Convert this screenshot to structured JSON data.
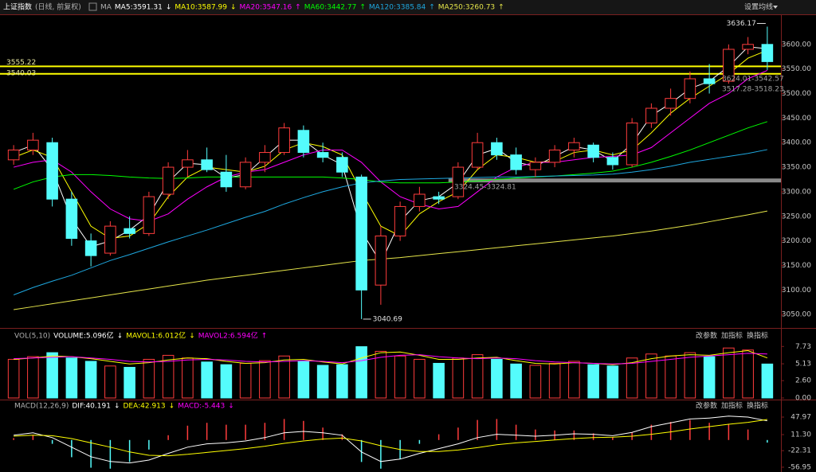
{
  "header": {
    "symbol": "上证指数",
    "period": "(日线, 前复权)",
    "ma": "MA",
    "settings": "设置均线",
    "buttons": [
      "改参数",
      "加指标",
      "换指标"
    ]
  },
  "chart_data": [
    {
      "type": "candlestick",
      "open": [
        3365,
        3385,
        3400,
        3285,
        3200,
        3175,
        3225,
        3215,
        3295,
        3350,
        3365,
        3340,
        3310,
        3360,
        3380,
        3425,
        3380,
        3370,
        3330,
        3110,
        3210,
        3270,
        3290,
        3290,
        3350,
        3400,
        3375,
        3345,
        3360,
        3385,
        3395,
        3370,
        3355,
        3440,
        3470,
        3490,
        3530,
        3525,
        3590,
        3600
      ],
      "high": [
        3395,
        3420,
        3410,
        3300,
        3215,
        3240,
        3250,
        3300,
        3360,
        3385,
        3390,
        3375,
        3370,
        3395,
        3440,
        3435,
        3400,
        3380,
        3335,
        3230,
        3280,
        3310,
        3300,
        3360,
        3420,
        3410,
        3390,
        3370,
        3395,
        3410,
        3400,
        3380,
        3450,
        3480,
        3510,
        3545,
        3560,
        3600,
        3615,
        3636.17
      ],
      "low": [
        3355,
        3375,
        3270,
        3190,
        3148,
        3170,
        3205,
        3210,
        3285,
        3330,
        3340,
        3300,
        3305,
        3340,
        3375,
        3370,
        3360,
        3330,
        3040.69,
        3070,
        3200,
        3260,
        3275,
        3285,
        3345,
        3365,
        3335,
        3330,
        3350,
        3370,
        3360,
        3345,
        3350,
        3430,
        3455,
        3480,
        3500,
        3520,
        3580,
        3548
      ],
      "close": [
        3385,
        3405,
        3285,
        3205,
        3170,
        3230,
        3215,
        3290,
        3350,
        3365,
        3345,
        3310,
        3360,
        3380,
        3430,
        3380,
        3370,
        3340,
        3100,
        3210,
        3270,
        3295,
        3285,
        3350,
        3400,
        3375,
        3345,
        3360,
        3385,
        3400,
        3370,
        3355,
        3440,
        3470,
        3490,
        3530,
        3520,
        3590,
        3600,
        3565
      ],
      "up_color": "#ff3c3c",
      "down_color": "#54fcfc",
      "ylim": [
        3026,
        3658
      ],
      "yticks": [
        {
          "value": 3050,
          "label": "3050.00"
        },
        {
          "value": 3100,
          "label": "3100.00"
        },
        {
          "value": 3150,
          "label": "3150.00"
        },
        {
          "value": 3200,
          "label": "3200.00"
        },
        {
          "value": 3250,
          "label": "3250.00"
        },
        {
          "value": 3300,
          "label": "3300.00"
        },
        {
          "value": 3350,
          "label": "3350.00"
        },
        {
          "value": 3400,
          "label": "3400.00"
        },
        {
          "value": 3450,
          "label": "3450.00"
        },
        {
          "value": 3500,
          "label": "3500.00"
        },
        {
          "value": 3550,
          "label": "3550.00"
        },
        {
          "value": 3600,
          "label": "3600.00"
        }
      ],
      "series": [
        {
          "label": "MA5:3591.31",
          "arrow": "↓",
          "color": "#ffffff",
          "values": [
            3380,
            3395,
            3345,
            3245,
            3188,
            3200,
            3222,
            3252,
            3320,
            3358,
            3355,
            3328,
            3335,
            3370,
            3405,
            3405,
            3375,
            3355,
            3220,
            3155,
            3240,
            3282,
            3290,
            3318,
            3375,
            3388,
            3360,
            3352,
            3372,
            3392,
            3385,
            3362,
            3398,
            3455,
            3480,
            3510,
            3525,
            3555,
            3595,
            3591.31
          ]
        },
        {
          "label": "MA10:3587.99",
          "arrow": "↓",
          "color": "#ffff00",
          "values": [
            3370,
            3385,
            3370,
            3300,
            3230,
            3205,
            3210,
            3235,
            3290,
            3330,
            3350,
            3345,
            3340,
            3352,
            3385,
            3400,
            3392,
            3375,
            3300,
            3230,
            3210,
            3255,
            3280,
            3300,
            3345,
            3375,
            3370,
            3360,
            3362,
            3380,
            3385,
            3375,
            3385,
            3420,
            3460,
            3490,
            3515,
            3540,
            3572,
            3587.99
          ]
        },
        {
          "label": "MA20:3547.16",
          "arrow": "↑",
          "color": "#ff00ff",
          "values": [
            3350,
            3360,
            3365,
            3340,
            3300,
            3265,
            3245,
            3240,
            3255,
            3285,
            3310,
            3330,
            3340,
            3345,
            3360,
            3375,
            3385,
            3385,
            3360,
            3320,
            3290,
            3275,
            3265,
            3270,
            3300,
            3330,
            3350,
            3360,
            3360,
            3365,
            3370,
            3372,
            3375,
            3390,
            3420,
            3450,
            3480,
            3500,
            3530,
            3547.16
          ]
        },
        {
          "label": "MA60:3442.77",
          "arrow": "↑",
          "color": "#00ff00",
          "values": [
            3305,
            3320,
            3330,
            3335,
            3335,
            3333,
            3330,
            3328,
            3327,
            3328,
            3330,
            3330,
            3330,
            3330,
            3330,
            3330,
            3330,
            3328,
            3325,
            3320,
            3318,
            3318,
            3318,
            3320,
            3322,
            3325,
            3328,
            3330,
            3332,
            3335,
            3338,
            3342,
            3350,
            3360,
            3372,
            3385,
            3400,
            3415,
            3430,
            3442.77
          ]
        },
        {
          "label": "MA120:3385.84",
          "arrow": "↑",
          "color": "#1ea8e0",
          "values": [
            3090,
            3105,
            3118,
            3130,
            3145,
            3160,
            3172,
            3185,
            3198,
            3210,
            3222,
            3235,
            3248,
            3260,
            3275,
            3288,
            3300,
            3310,
            3318,
            3322,
            3325,
            3326,
            3327,
            3328,
            3329,
            3330,
            3330,
            3331,
            3332,
            3333,
            3334,
            3336,
            3340,
            3345,
            3352,
            3360,
            3366,
            3372,
            3378,
            3385.84
          ]
        },
        {
          "label": "MA250:3260.73",
          "arrow": "↑",
          "color": "#e6e64a",
          "values": [
            3060,
            3066,
            3072,
            3078,
            3084,
            3090,
            3096,
            3102,
            3108,
            3114,
            3120,
            3125,
            3130,
            3135,
            3140,
            3145,
            3150,
            3155,
            3160,
            3163,
            3166,
            3170,
            3174,
            3178,
            3182,
            3186,
            3190,
            3194,
            3198,
            3202,
            3206,
            3210,
            3215,
            3220,
            3226,
            3232,
            3239,
            3246,
            3253,
            3260.73
          ]
        }
      ],
      "hlines": [
        3555.22,
        3540.03
      ],
      "hline_color": "#ffff00",
      "support_band": [
        3319,
        3327
      ],
      "annotations": [
        "3624.01-3542.57",
        "3517.28-3518.23",
        "3324.45-3324.81"
      ]
    },
    {
      "type": "volume",
      "title": "VOL(5,10)",
      "volume_label": "VOLUME:5.096亿",
      "volume_arrow": "↓",
      "label_color": "#ffffff",
      "values": [
        5.8,
        6.2,
        6.8,
        6.0,
        5.5,
        4.8,
        4.6,
        5.8,
        6.4,
        6.0,
        5.4,
        5.0,
        5.2,
        5.6,
        6.3,
        5.5,
        4.9,
        5.0,
        7.7,
        7.0,
        6.3,
        5.8,
        5.2,
        6.0,
        6.5,
        5.8,
        5.1,
        4.9,
        5.2,
        5.5,
        5.0,
        4.8,
        6.0,
        6.6,
        6.3,
        6.8,
        6.2,
        7.5,
        7.2,
        5.096
      ],
      "series": [
        {
          "label": "MAVOL1:6.012亿",
          "arrow": "↓",
          "color": "#ffff00",
          "values": [
            5.8,
            6.0,
            6.3,
            6.2,
            5.9,
            5.5,
            5.1,
            5.3,
            5.7,
            6.0,
            5.9,
            5.5,
            5.2,
            5.3,
            5.7,
            5.8,
            5.4,
            5.1,
            6.0,
            6.8,
            6.9,
            6.4,
            5.8,
            5.8,
            6.0,
            6.1,
            5.6,
            5.2,
            5.1,
            5.3,
            5.2,
            5.0,
            5.3,
            5.9,
            6.3,
            6.5,
            6.4,
            6.8,
            7.1,
            6.012
          ]
        },
        {
          "label": "MAVOL2:6.594亿",
          "arrow": "↑",
          "color": "#ff00ff",
          "values": [
            5.9,
            6.0,
            6.1,
            6.2,
            6.0,
            5.8,
            5.5,
            5.4,
            5.5,
            5.7,
            5.8,
            5.7,
            5.5,
            5.4,
            5.5,
            5.6,
            5.5,
            5.3,
            5.6,
            6.1,
            6.4,
            6.5,
            6.2,
            6.0,
            5.9,
            6.0,
            5.9,
            5.6,
            5.4,
            5.3,
            5.2,
            5.1,
            5.2,
            5.5,
            5.8,
            6.1,
            6.3,
            6.5,
            6.7,
            6.594
          ]
        }
      ],
      "ylim": [
        0,
        8.6
      ],
      "yticks": [
        {
          "value": 0,
          "label": "0.00"
        },
        {
          "value": 2.6,
          "label": "2.60"
        },
        5.13,
        7.73
      ]
    },
    {
      "type": "macd",
      "title": "MACD(12,26,9)",
      "series": [
        {
          "label": "DIF:40.191",
          "arrow": "↓",
          "color": "#ffffff",
          "values": [
            10,
            15,
            5,
            -15,
            -35,
            -45,
            -48,
            -42,
            -28,
            -15,
            -8,
            -6,
            -2,
            5,
            15,
            18,
            15,
            10,
            -25,
            -45,
            -40,
            -28,
            -18,
            -8,
            5,
            12,
            10,
            8,
            10,
            13,
            12,
            9,
            16,
            28,
            36,
            44,
            46,
            50,
            48,
            40.191
          ]
        },
        {
          "label": "DEA:42.913",
          "arrow": "↓",
          "color": "#ffff00",
          "values": [
            8,
            10,
            9,
            3,
            -6,
            -15,
            -25,
            -32,
            -33,
            -30,
            -26,
            -22,
            -18,
            -13,
            -7,
            -2,
            2,
            4,
            -2,
            -12,
            -20,
            -24,
            -24,
            -21,
            -16,
            -10,
            -6,
            -3,
            0,
            3,
            5,
            6,
            8,
            12,
            17,
            23,
            28,
            33,
            37,
            42.913
          ]
        }
      ],
      "bars": {
        "label": "MACD:-5.443",
        "arrow": "↓",
        "color": "#ff00ff",
        "up_color": "#ff3c3c",
        "down_color": "#54fcfc",
        "values": [
          4,
          10,
          -8,
          -36,
          -58,
          -60,
          -46,
          -20,
          10,
          30,
          36,
          32,
          32,
          36,
          44,
          40,
          26,
          12,
          -46,
          -60,
          -40,
          -8,
          12,
          26,
          42,
          44,
          32,
          22,
          20,
          20,
          14,
          6,
          16,
          32,
          38,
          42,
          36,
          34,
          22,
          -5.443
        ]
      },
      "ylim": [
        -62,
        58
      ],
      "yticks": [
        -56.95,
        -22.31,
        {
          "value": 11.3,
          "label": "11.30"
        },
        47.97
      ]
    }
  ]
}
